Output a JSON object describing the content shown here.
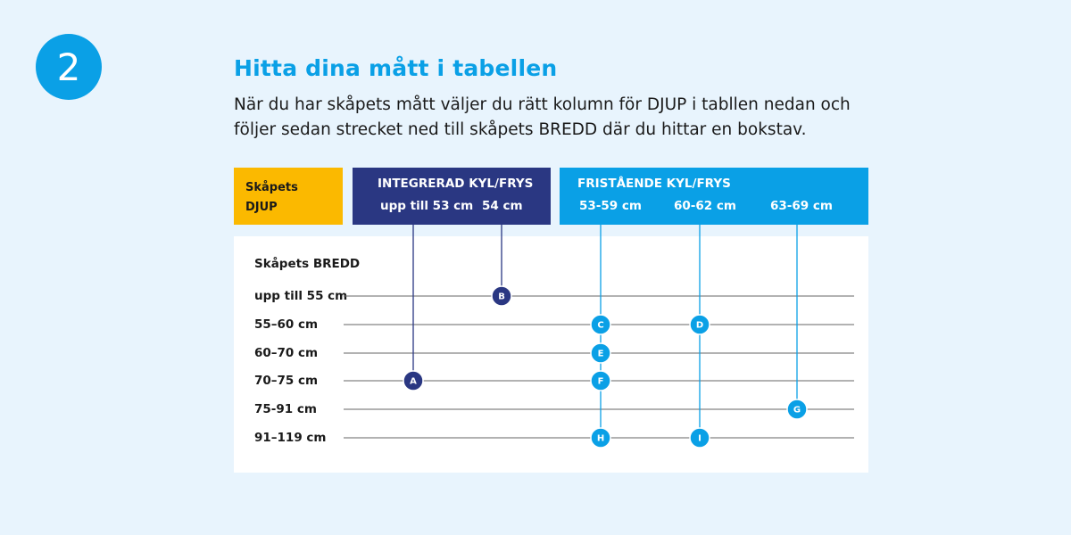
{
  "step": "2",
  "title": "Hitta dina mått i tabellen",
  "intro": "När du har skåpets mått väljer du rätt kolumn för DJUP i tabllen nedan och följer sedan strecket ned till skåpets BREDD där du hittar en bokstav.",
  "header": {
    "depth_label": "Skåpets DJUP",
    "integrated": {
      "title": "INTEGRERAD KYL/FRYS",
      "columns": [
        "upp till 53 cm",
        "54 cm"
      ]
    },
    "freestanding": {
      "title": "FRISTÅENDE KYL/FRYS",
      "columns": [
        "53-59 cm",
        "60-62 cm",
        "63-69 cm"
      ]
    }
  },
  "width_label": "Skåpets BREDD",
  "rows": [
    "upp till 55 cm",
    "55–60 cm",
    "60–70 cm",
    "70–75 cm",
    "75-91 cm",
    "91–119 cm"
  ],
  "colors": {
    "integrated": "#2a3782",
    "freestanding": "#0aa0e6",
    "depth": "#fbb900",
    "row_line": "#666666"
  },
  "chart_data": {
    "type": "table",
    "columns": [
      "upp till 53 cm",
      "54 cm",
      "53-59 cm",
      "60-62 cm",
      "63-69 cm"
    ],
    "rows": [
      "upp till 55 cm",
      "55–60 cm",
      "60–70 cm",
      "70–75 cm",
      "75-91 cm",
      "91–119 cm"
    ],
    "markers": [
      {
        "letter": "A",
        "column": 0,
        "row": 3,
        "group": "integrated"
      },
      {
        "letter": "B",
        "column": 1,
        "row": 0,
        "group": "integrated"
      },
      {
        "letter": "C",
        "column": 2,
        "row": 1,
        "group": "freestanding"
      },
      {
        "letter": "D",
        "column": 3,
        "row": 1,
        "group": "freestanding"
      },
      {
        "letter": "E",
        "column": 2,
        "row": 2,
        "group": "freestanding"
      },
      {
        "letter": "F",
        "column": 2,
        "row": 3,
        "group": "freestanding"
      },
      {
        "letter": "G",
        "column": 4,
        "row": 4,
        "group": "freestanding"
      },
      {
        "letter": "H",
        "column": 2,
        "row": 5,
        "group": "freestanding"
      },
      {
        "letter": "I",
        "column": 3,
        "row": 5,
        "group": "freestanding"
      }
    ]
  }
}
